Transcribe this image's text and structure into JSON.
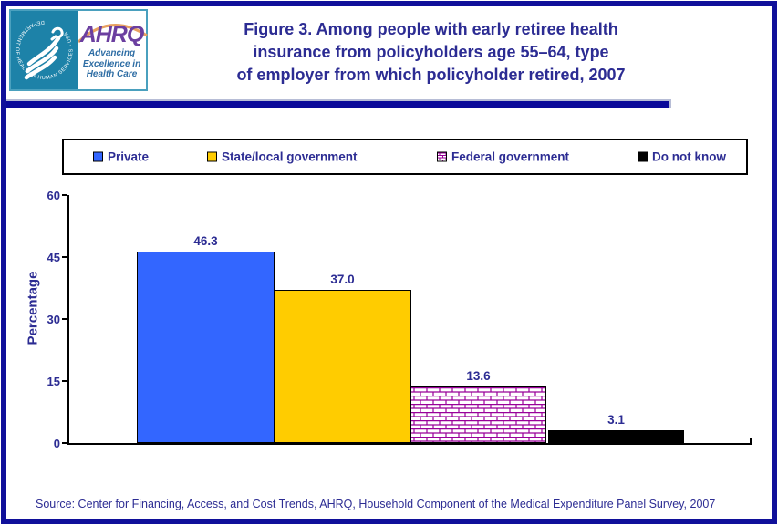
{
  "page": {
    "title_lines": "Figure 3. Among people with early retiree health\ninsurance from policyholders age 55–64, type\nof employer from which policyholder retired, 2007",
    "source": "Source: Center for Financing, Access, and Cost Trends, AHRQ, Household Component of the Medical Expenditure Panel Survey, 2007"
  },
  "logo": {
    "ring_text": "DEPARTMENT OF HEALTH & HUMAN SERVICES • USA",
    "acronym": "AHRQ",
    "tagline": "Advancing\nExcellence in\nHealth Care"
  },
  "chart_data": {
    "type": "bar",
    "title": "Figure 3. Among people with early retiree health insurance from policyholders age 55–64, type of employer from which policyholder retired, 2007",
    "categories": [
      "Private",
      "State/local government",
      "Federal government",
      "Do not know"
    ],
    "values": [
      46.3,
      37.0,
      13.6,
      3.1
    ],
    "value_labels": [
      "46.3",
      "37.0",
      "13.6",
      "3.1"
    ],
    "xlabel": "",
    "ylabel": "Percentage",
    "ylim": [
      0,
      60
    ],
    "yticks": [
      0,
      15,
      30,
      45,
      60
    ],
    "ytick_labels": [
      "0",
      "15",
      "30",
      "45",
      "60"
    ],
    "grid": false,
    "legend_position": "top",
    "bar_styles": [
      "#3366FF",
      "#FFCC00",
      "brick-pattern",
      "#000000"
    ],
    "pattern_colors": {
      "brick_line": "#990099",
      "brick_bg": "#FFFFFF"
    }
  },
  "colors": {
    "frame_navy": "#10109A",
    "text_navy": "#2C2C93",
    "bar_private": "#3366FF",
    "bar_state_local": "#FFCC00",
    "bar_federal_line": "#990099",
    "bar_do_not_know": "#000000",
    "hhs_teal": "#1D82A8"
  }
}
